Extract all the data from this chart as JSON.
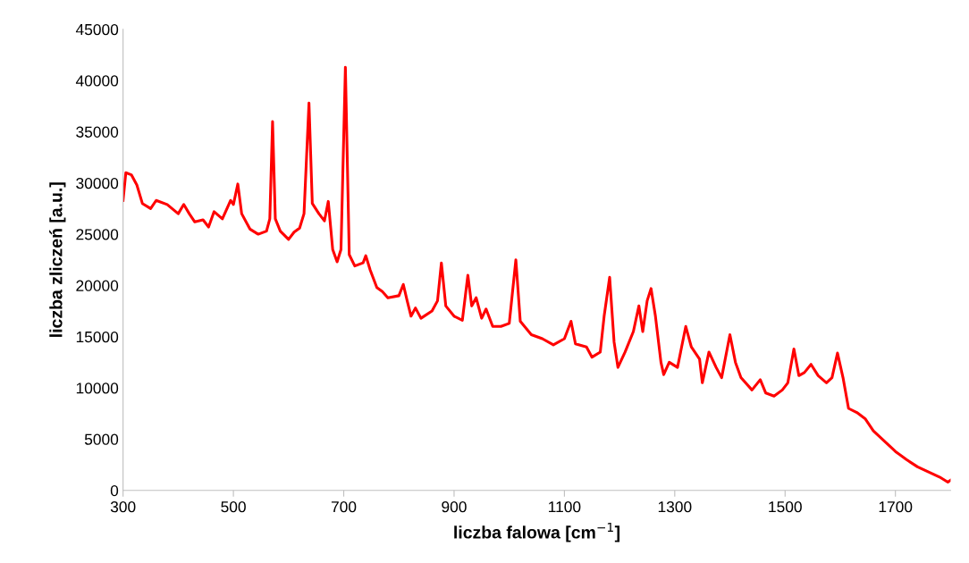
{
  "chart_data": {
    "type": "line",
    "xlabel": "liczba falowa [cm$^{−1}$]",
    "ylabel": "liczba zliczeń [a.u.]",
    "xlim": [
      300,
      1800
    ],
    "xticks": [
      300,
      500,
      700,
      900,
      1100,
      1300,
      1500,
      1700
    ],
    "ylim": [
      0,
      45000
    ],
    "yticks": [
      0,
      5000,
      10000,
      15000,
      20000,
      25000,
      30000,
      35000,
      40000,
      45000
    ],
    "grid": false,
    "marker": "none",
    "line_style": "solid",
    "series": [
      {
        "color": "#ff0000",
        "x": [
          300,
          305,
          315,
          325,
          335,
          350,
          360,
          380,
          400,
          410,
          420,
          430,
          445,
          455,
          465,
          480,
          495,
          500,
          508,
          515,
          530,
          545,
          560,
          566,
          571,
          576,
          585,
          600,
          610,
          620,
          628,
          637,
          643,
          655,
          665,
          672,
          680,
          688,
          695,
          703,
          710,
          720,
          735,
          740,
          748,
          760,
          770,
          780,
          800,
          808,
          815,
          822,
          830,
          840,
          860,
          870,
          877,
          885,
          900,
          915,
          925,
          932,
          940,
          950,
          958,
          970,
          985,
          1000,
          1012,
          1020,
          1040,
          1060,
          1080,
          1100,
          1112,
          1120,
          1140,
          1150,
          1165,
          1172,
          1182,
          1190,
          1197,
          1210,
          1225,
          1235,
          1242,
          1250,
          1257,
          1265,
          1275,
          1280,
          1290,
          1305,
          1320,
          1330,
          1345,
          1350,
          1362,
          1375,
          1385,
          1400,
          1410,
          1420,
          1440,
          1455,
          1465,
          1480,
          1495,
          1505,
          1516,
          1525,
          1535,
          1547,
          1560,
          1575,
          1585,
          1595,
          1605,
          1615,
          1630,
          1645,
          1660,
          1680,
          1700,
          1720,
          1740,
          1760,
          1780,
          1795,
          1800
        ],
        "values": [
          28300,
          31000,
          30800,
          29800,
          28000,
          27500,
          28300,
          27900,
          27000,
          27900,
          27000,
          26200,
          26400,
          25700,
          27200,
          26500,
          28300,
          27900,
          29900,
          27000,
          25500,
          25000,
          25300,
          26500,
          36000,
          26500,
          25300,
          24500,
          25200,
          25600,
          27000,
          37800,
          28000,
          27000,
          26300,
          28200,
          23500,
          22300,
          23500,
          41300,
          23000,
          21900,
          22200,
          22900,
          21500,
          19800,
          19400,
          18800,
          19000,
          20100,
          18500,
          17000,
          17800,
          16800,
          17500,
          18500,
          22200,
          18000,
          17000,
          16600,
          21000,
          18000,
          18800,
          16800,
          17700,
          16000,
          16000,
          16300,
          22500,
          16500,
          15200,
          14800,
          14200,
          14800,
          16500,
          14300,
          14000,
          13000,
          13500,
          17000,
          20800,
          14500,
          12000,
          13500,
          15500,
          18000,
          15500,
          18500,
          19700,
          17000,
          12500,
          11300,
          12500,
          12000,
          16000,
          14000,
          12800,
          10500,
          13500,
          12000,
          11000,
          15200,
          12500,
          11000,
          9800,
          10800,
          9500,
          9200,
          9800,
          10500,
          13800,
          11200,
          11500,
          12300,
          11200,
          10500,
          11000,
          13400,
          11000,
          8000,
          7600,
          7000,
          5800,
          4800,
          3800,
          3000,
          2300,
          1800,
          1300,
          800,
          1000
        ]
      }
    ]
  }
}
